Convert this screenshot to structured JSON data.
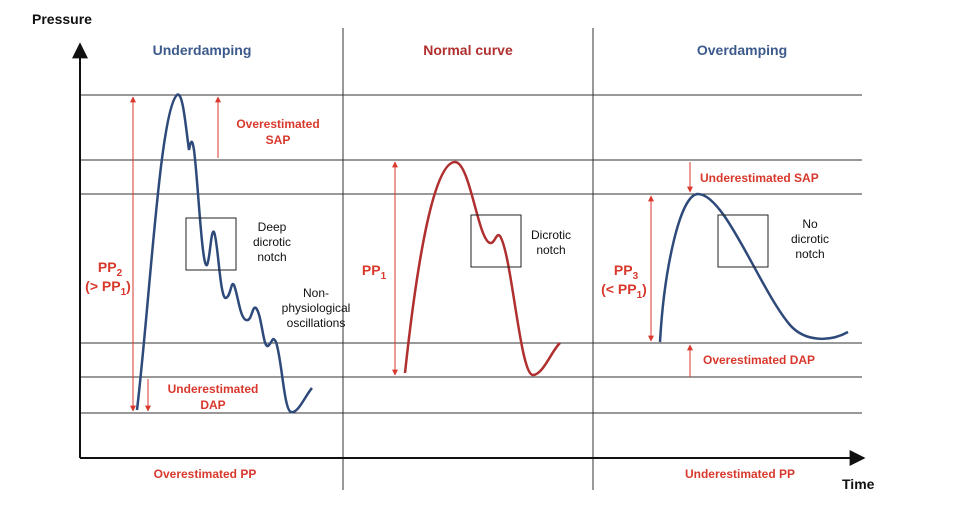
{
  "axes": {
    "y_label": "Pressure",
    "x_label": "Time"
  },
  "panels": [
    {
      "title": "Underdamping",
      "pp_label": {
        "line1": {
          "main": "PP",
          "sub": "2"
        },
        "line2": {
          "pre": "(> PP",
          "sub": "1",
          "post": ")"
        }
      },
      "sap_note": [
        "Overestimated",
        "SAP"
      ],
      "notch_note": [
        "Deep",
        "dicrotic",
        "notch"
      ],
      "oscillation_note": [
        "Non-",
        "physiological",
        "oscillations"
      ],
      "dap_note": [
        "Underestimated",
        "DAP"
      ],
      "pp_note": "Overestimated PP"
    },
    {
      "title": "Normal curve",
      "pp_label": {
        "line1": {
          "main": "PP",
          "sub": "1"
        }
      },
      "notch_note": [
        "Dicrotic",
        "notch"
      ]
    },
    {
      "title": "Overdamping",
      "pp_label": {
        "line1": {
          "main": "PP",
          "sub": "3"
        },
        "line2": {
          "pre": "(< PP",
          "sub": "1",
          "post": ")"
        }
      },
      "sap_note": "Underestimated SAP",
      "notch_note": [
        "No",
        "dicrotic",
        "notch"
      ],
      "dap_note": "Overestimated DAP",
      "pp_note": "Underestimated PP"
    }
  ]
}
